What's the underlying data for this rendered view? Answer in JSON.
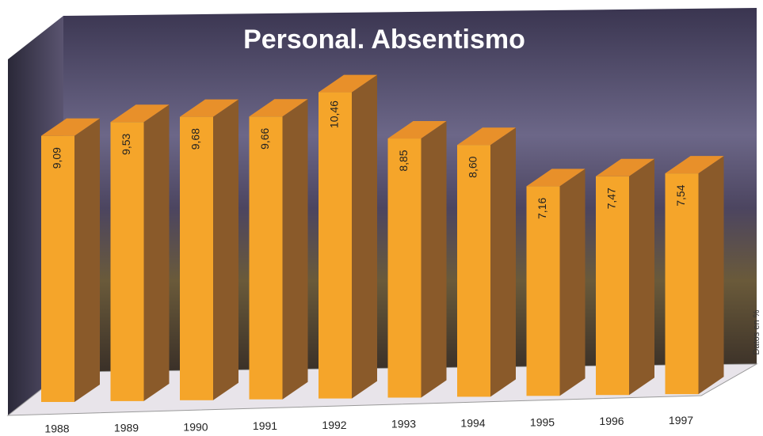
{
  "chart_data": {
    "type": "bar",
    "title": "Personal. Absentismo",
    "axis_label": "Datos en %",
    "categories": [
      "1988",
      "1989",
      "1990",
      "1991",
      "1992",
      "1993",
      "1994",
      "1995",
      "1996",
      "1997"
    ],
    "values": [
      9.09,
      9.53,
      9.68,
      9.66,
      10.46,
      8.85,
      8.6,
      7.16,
      7.47,
      7.54
    ],
    "value_labels": [
      "9,09",
      "9,53",
      "9,68",
      "9,66",
      "10,46",
      "8,85",
      "8,60",
      "7,16",
      "7,47",
      "7,54"
    ],
    "color": "#f5a52a"
  }
}
